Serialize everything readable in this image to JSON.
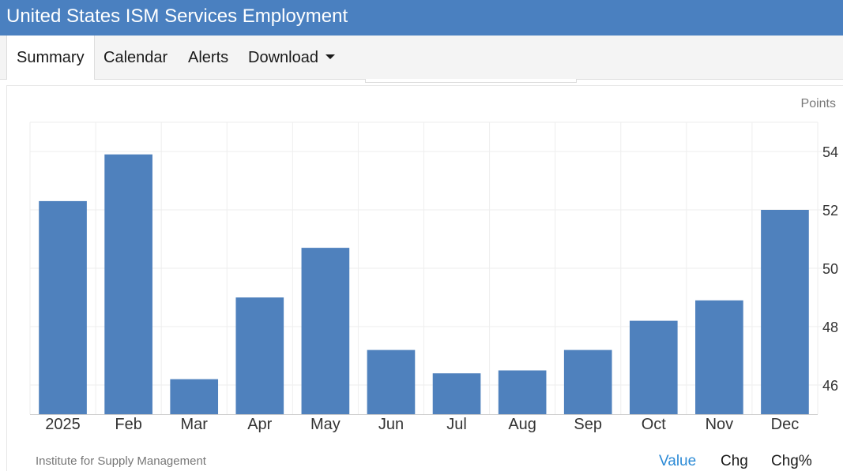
{
  "header": {
    "title": "United States ISM Services Employment"
  },
  "nav": {
    "tabs": [
      {
        "label": "Summary",
        "active": true
      },
      {
        "label": "Calendar",
        "active": false
      },
      {
        "label": "Alerts",
        "active": false
      },
      {
        "label": "Download",
        "active": false,
        "dropdown": true
      }
    ]
  },
  "chart_data": {
    "type": "bar",
    "unit_label": "Points",
    "categories": [
      "2025",
      "Feb",
      "Mar",
      "Apr",
      "May",
      "Jun",
      "Jul",
      "Aug",
      "Sep",
      "Oct",
      "Nov",
      "Dec"
    ],
    "values": [
      52.3,
      53.9,
      46.2,
      49.0,
      50.7,
      47.2,
      46.4,
      46.5,
      47.2,
      48.2,
      48.9,
      52.0
    ],
    "yticks": [
      46,
      48,
      50,
      52,
      54
    ],
    "ylim": [
      45,
      55
    ],
    "y_axis_side": "right",
    "grid": true,
    "bar_color": "#4f81bd"
  },
  "footer": {
    "source": "Institute for Supply Management",
    "toggles": [
      {
        "label": "Value",
        "active": true
      },
      {
        "label": "Chg",
        "active": false
      },
      {
        "label": "Chg%",
        "active": false
      }
    ],
    "active_color": "#2b8ad6",
    "inactive_color": "#1a1a1a"
  }
}
